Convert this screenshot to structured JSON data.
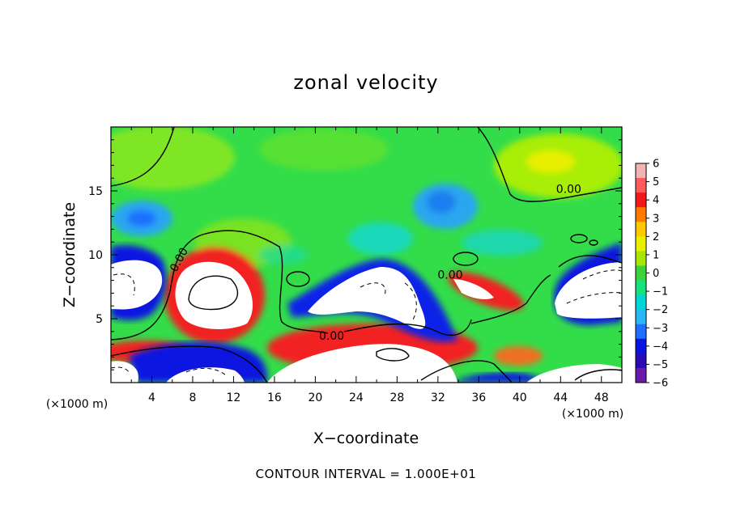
{
  "chart_data": {
    "type": "heatmap",
    "title": "zonal velocity",
    "xlabel": "X−coordinate",
    "ylabel": "Z−coordinate",
    "x_unit": "(×1000 m)",
    "y_unit": "(×1000 m)",
    "xlim": [
      0,
      50
    ],
    "ylim": [
      0,
      20
    ],
    "x_ticks": [
      4,
      8,
      12,
      16,
      20,
      24,
      28,
      32,
      36,
      40,
      44,
      48
    ],
    "y_ticks": [
      5,
      10,
      15
    ],
    "colorbar": {
      "min": -6,
      "max": 6,
      "ticks": [
        6,
        5,
        4,
        3,
        2,
        1,
        0,
        -1,
        -2,
        -3,
        -4,
        -5,
        -6
      ],
      "tick_labels": [
        "6",
        "5",
        "4",
        "3",
        "2",
        "1",
        "0",
        "−1",
        "−2",
        "−3",
        "−4",
        "−5",
        "−6"
      ],
      "colors_top_to_bottom": [
        "#f4b2b2",
        "#ff5a5a",
        "#f01818",
        "#ff7a00",
        "#ffc800",
        "#e6f000",
        "#a6e600",
        "#3cd23c",
        "#18e07a",
        "#00d6d6",
        "#29b6f6",
        "#1e6fff",
        "#0a14e0",
        "#2a0ab4",
        "#6a1aa8"
      ]
    },
    "contour_labels": [
      {
        "text": "0.00",
        "x": 44.8,
        "z": 15.1
      },
      {
        "text": "0.00",
        "x": 6.7,
        "z": 9.6
      },
      {
        "text": "0.00",
        "x": 33.2,
        "z": 8.4
      },
      {
        "text": "0.00",
        "x": 21.6,
        "z": 3.6
      }
    ],
    "zero_contour_note": "solid black line = 0 contour; dashed = negative",
    "footnote": "CONTOUR INTERVAL =  1.000E+01"
  }
}
